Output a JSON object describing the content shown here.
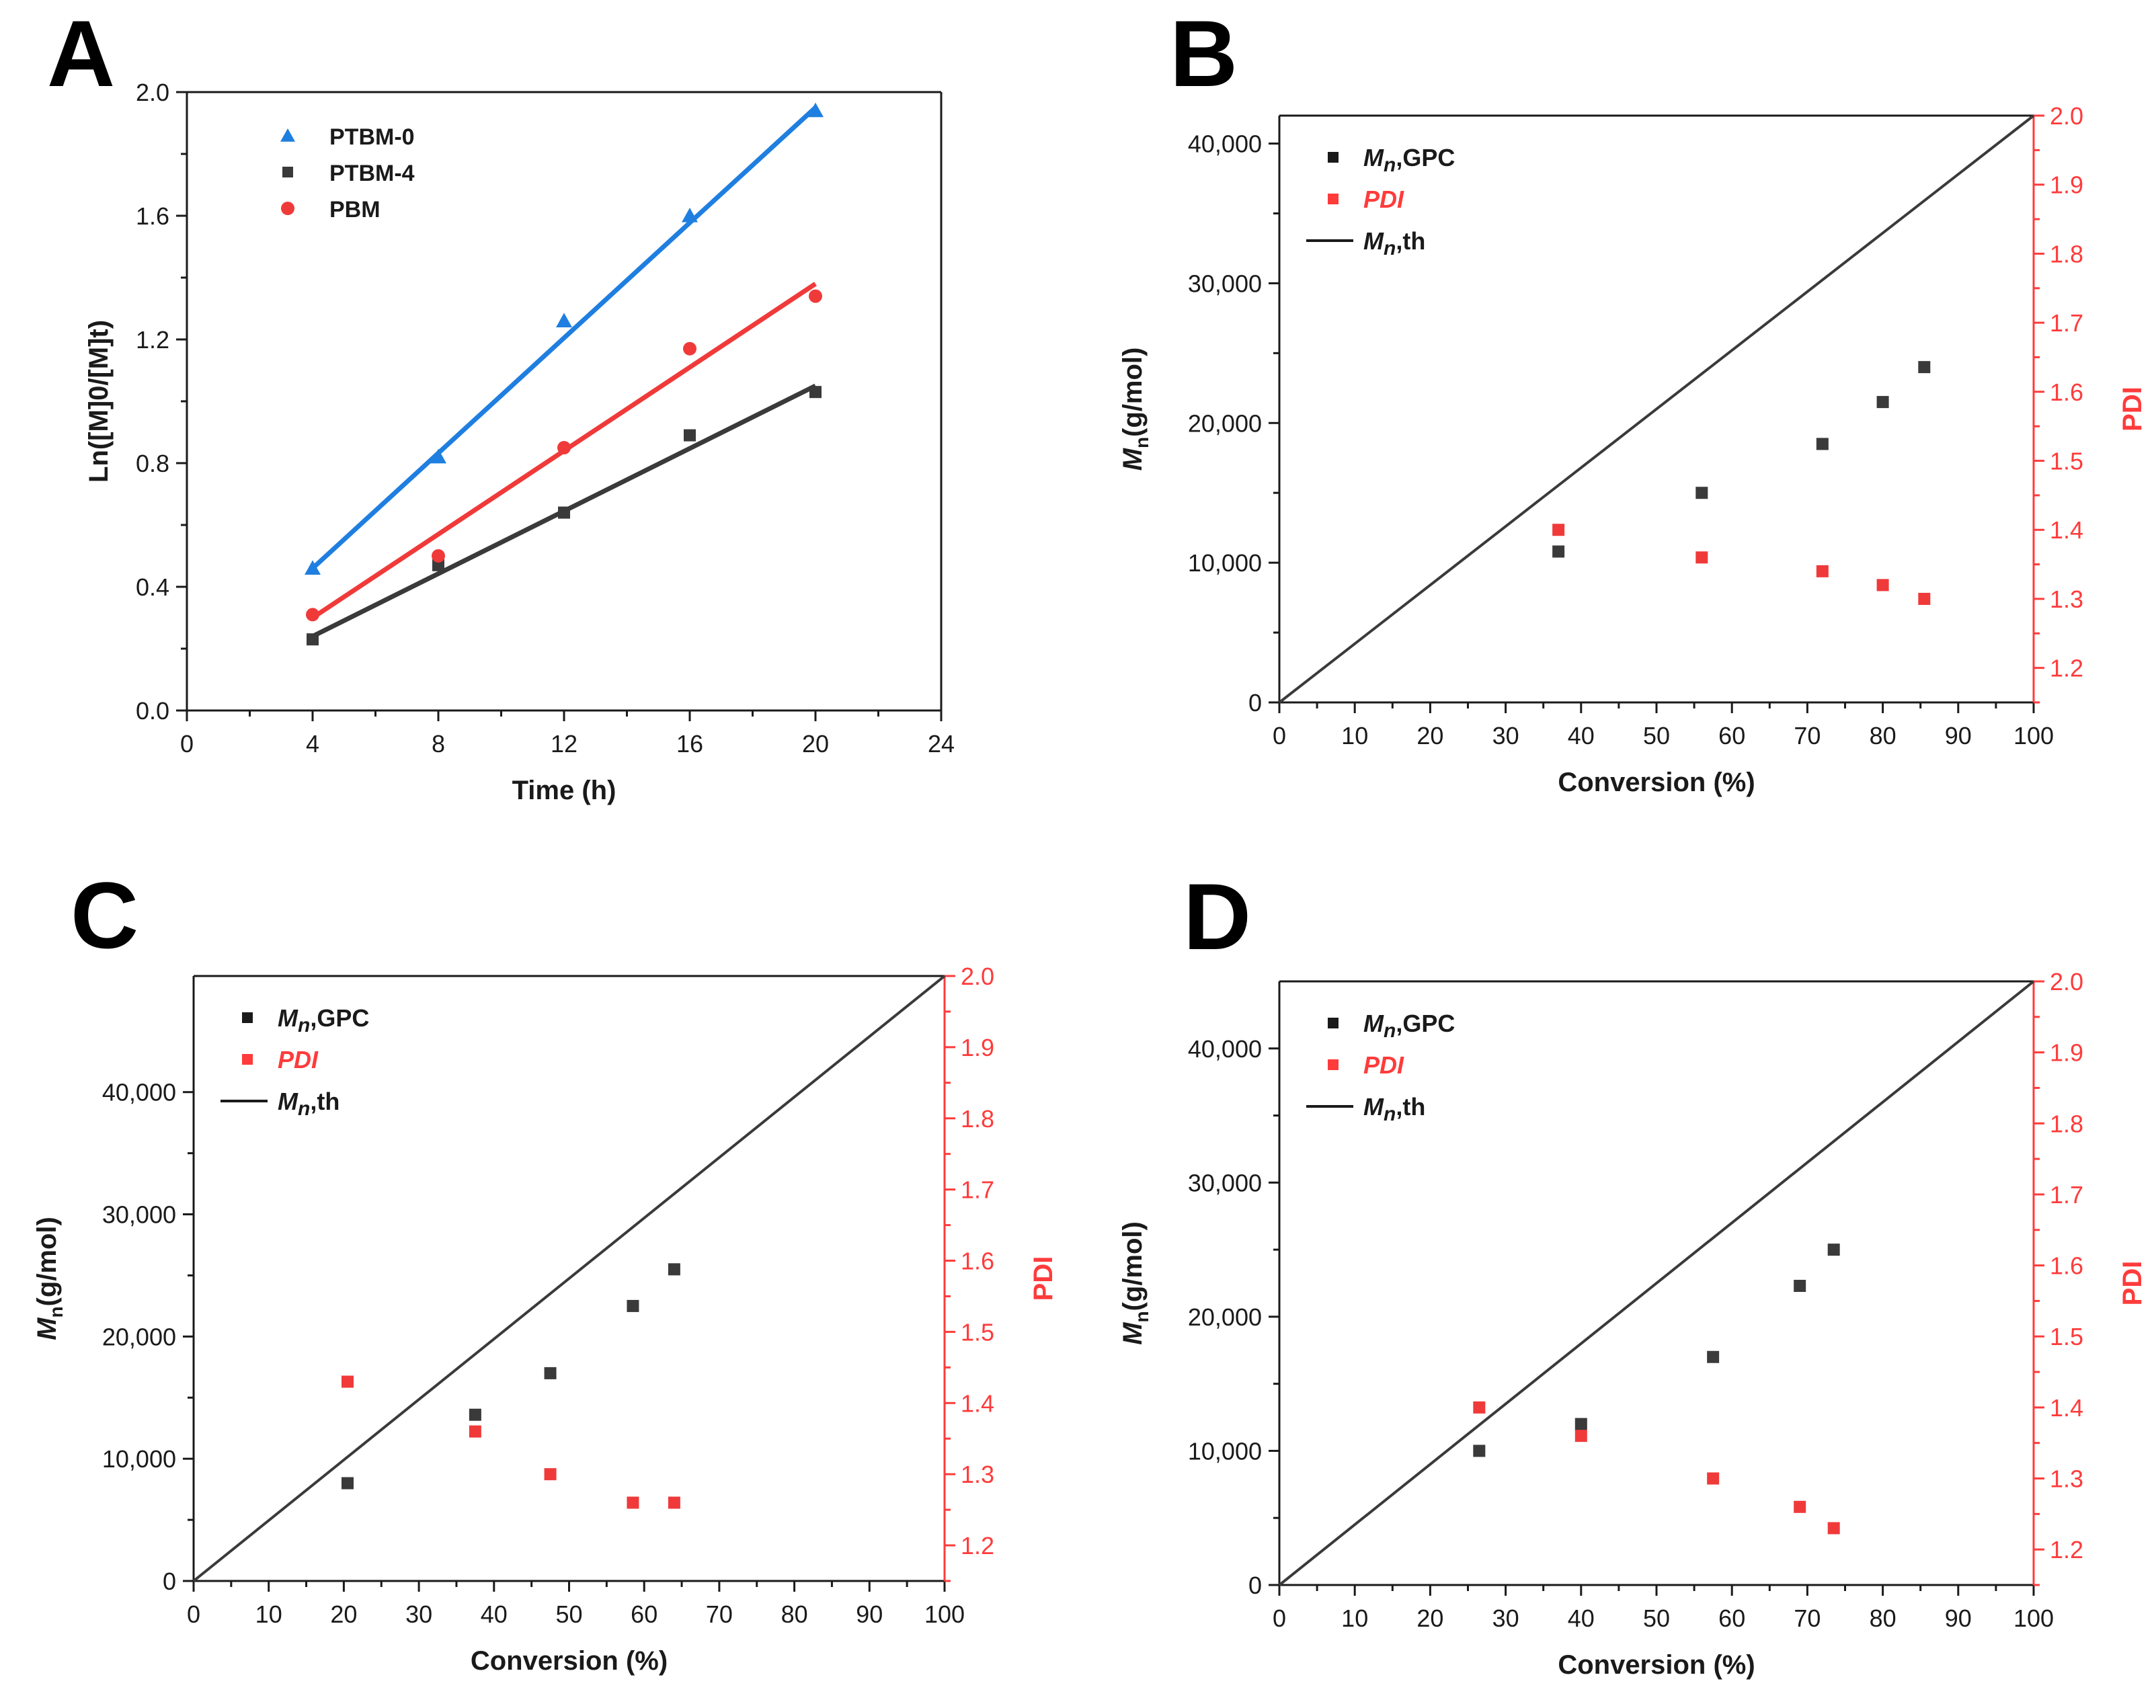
{
  "chart_data": [
    {
      "panel": "A",
      "type": "scatter",
      "xlabel": "Time (h)",
      "ylabel": "Ln([M]0/[M]t)",
      "xlim": [
        0,
        24
      ],
      "ylim": [
        0,
        2.0
      ],
      "xticks": [
        "0",
        "4",
        "8",
        "12",
        "16",
        "20",
        "24"
      ],
      "yticks": [
        "0.0",
        "0.4",
        "0.8",
        "1.2",
        "1.6",
        "2.0"
      ],
      "legend_position": "top-left",
      "series": [
        {
          "name": "PTBM-0",
          "marker": "triangle",
          "color": "#1f7fe0",
          "x": [
            4,
            8,
            12,
            16,
            20
          ],
          "y": [
            0.46,
            0.82,
            1.26,
            1.6,
            1.94
          ],
          "fit": [
            [
              4,
              0.46
            ],
            [
              20,
              1.95
            ]
          ]
        },
        {
          "name": "PTBM-4",
          "marker": "square",
          "color": "#3a3a3a",
          "x": [
            4,
            8,
            12,
            16,
            20
          ],
          "y": [
            0.23,
            0.47,
            0.64,
            0.89,
            1.03
          ],
          "fit": [
            [
              4,
              0.24
            ],
            [
              20,
              1.05
            ]
          ]
        },
        {
          "name": "PBM",
          "marker": "circle",
          "color": "#f03a3a",
          "x": [
            4,
            8,
            12,
            16,
            20
          ],
          "y": [
            0.31,
            0.5,
            0.85,
            1.17,
            1.34
          ],
          "fit": [
            [
              4,
              0.3
            ],
            [
              20,
              1.38
            ]
          ]
        }
      ]
    },
    {
      "panel": "B",
      "type": "scatter",
      "xlabel": "Conversion (%)",
      "ylabel_italic": "M",
      "ylabel_sub": "n",
      "ylabel_rest": "(g/mol)",
      "y2label": "PDI",
      "xlim": [
        0,
        100
      ],
      "ylim": [
        0,
        42000
      ],
      "y2lim": [
        1.15,
        2.0
      ],
      "xticks": [
        "0",
        "10",
        "20",
        "30",
        "40",
        "50",
        "60",
        "70",
        "80",
        "90",
        "100"
      ],
      "yticks": [
        "0",
        "10,000",
        "20,000",
        "30,000",
        "40,000"
      ],
      "y2ticks": [
        "1.2",
        "1.3",
        "1.4",
        "1.5",
        "1.6",
        "1.7",
        "1.8",
        "1.9",
        "2.0"
      ],
      "legend_position": "top-left",
      "legend": [
        {
          "italic": "M",
          "sub": "n",
          "rest": ",GPC"
        },
        {
          "italic": "PDI",
          "sub": "",
          "rest": ""
        },
        {
          "italic": "M",
          "sub": "n",
          "rest": ",th"
        }
      ],
      "series": [
        {
          "name": "Mn,GPC",
          "axis": "left",
          "color": "#3a3a3a",
          "x": [
            37,
            56,
            72,
            80,
            85.5
          ],
          "y": [
            10800,
            15000,
            18500,
            21500,
            24000
          ]
        },
        {
          "name": "PDI",
          "axis": "right",
          "color": "#f03a3a",
          "x": [
            37,
            56,
            72,
            80,
            85.5
          ],
          "y": [
            1.4,
            1.36,
            1.34,
            1.32,
            1.3
          ]
        },
        {
          "name": "Mn,th",
          "axis": "left",
          "type": "line",
          "color": "#3a3a3a",
          "x": [
            0,
            100
          ],
          "y": [
            0,
            42000
          ]
        }
      ]
    },
    {
      "panel": "C",
      "type": "scatter",
      "xlabel": "Conversion (%)",
      "ylabel_italic": "M",
      "ylabel_sub": "n",
      "ylabel_rest": "(g/mol)",
      "y2label": "PDI",
      "xlim": [
        0,
        100
      ],
      "ylim": [
        0,
        49500
      ],
      "y2lim": [
        1.15,
        2.0
      ],
      "xticks": [
        "0",
        "10",
        "20",
        "30",
        "40",
        "50",
        "60",
        "70",
        "80",
        "90",
        "100"
      ],
      "yticks": [
        "0",
        "10,000",
        "20,000",
        "30,000",
        "40,000"
      ],
      "y2ticks": [
        "1.2",
        "1.3",
        "1.4",
        "1.5",
        "1.6",
        "1.7",
        "1.8",
        "1.9",
        "2.0"
      ],
      "legend_position": "top-left",
      "legend": [
        {
          "italic": "M",
          "sub": "n",
          "rest": ",GPC"
        },
        {
          "italic": "PDI",
          "sub": "",
          "rest": ""
        },
        {
          "italic": "M",
          "sub": "n",
          "rest": ",th"
        }
      ],
      "series": [
        {
          "name": "Mn,GPC",
          "axis": "left",
          "color": "#3a3a3a",
          "x": [
            20.5,
            37.5,
            47.5,
            58.5,
            64
          ],
          "y": [
            8000,
            13600,
            17000,
            22500,
            25500
          ]
        },
        {
          "name": "PDI",
          "axis": "right",
          "color": "#f03a3a",
          "x": [
            20.5,
            37.5,
            47.5,
            58.5,
            64
          ],
          "y": [
            1.43,
            1.36,
            1.3,
            1.26,
            1.26
          ]
        },
        {
          "name": "Mn,th",
          "axis": "left",
          "type": "line",
          "color": "#3a3a3a",
          "x": [
            0,
            100
          ],
          "y": [
            0,
            49500
          ]
        }
      ]
    },
    {
      "panel": "D",
      "type": "scatter",
      "xlabel": "Conversion (%)",
      "ylabel_italic": "M",
      "ylabel_sub": "n",
      "ylabel_rest": "(g/mol)",
      "y2label": "PDI",
      "xlim": [
        0,
        100
      ],
      "ylim": [
        0,
        45000
      ],
      "y2lim": [
        1.15,
        2.0
      ],
      "xticks": [
        "0",
        "10",
        "20",
        "30",
        "40",
        "50",
        "60",
        "70",
        "80",
        "90",
        "100"
      ],
      "yticks": [
        "0",
        "10,000",
        "20,000",
        "30,000",
        "40,000"
      ],
      "y2ticks": [
        "1.2",
        "1.3",
        "1.4",
        "1.5",
        "1.6",
        "1.7",
        "1.8",
        "1.9",
        "2.0"
      ],
      "legend_position": "top-left",
      "legend": [
        {
          "italic": "M",
          "sub": "n",
          "rest": ",GPC"
        },
        {
          "italic": "PDI",
          "sub": "",
          "rest": ""
        },
        {
          "italic": "M",
          "sub": "n",
          "rest": ",th"
        }
      ],
      "series": [
        {
          "name": "Mn,GPC",
          "axis": "left",
          "color": "#3a3a3a",
          "x": [
            26.5,
            40,
            57.5,
            69,
            73.5
          ],
          "y": [
            10000,
            12000,
            17000,
            22300,
            25000
          ]
        },
        {
          "name": "PDI",
          "axis": "right",
          "color": "#f03a3a",
          "x": [
            26.5,
            40,
            57.5,
            69,
            73.5
          ],
          "y": [
            1.4,
            1.36,
            1.3,
            1.26,
            1.23
          ]
        },
        {
          "name": "Mn,th",
          "axis": "left",
          "type": "line",
          "color": "#3a3a3a",
          "x": [
            0,
            100
          ],
          "y": [
            0,
            45000
          ]
        }
      ]
    }
  ],
  "colors": {
    "axis": "#1a1a1a",
    "pdi_axis": "#ff3b3b",
    "legend_text": "#1a1a1a",
    "pdi_text": "#ff3b3b"
  }
}
